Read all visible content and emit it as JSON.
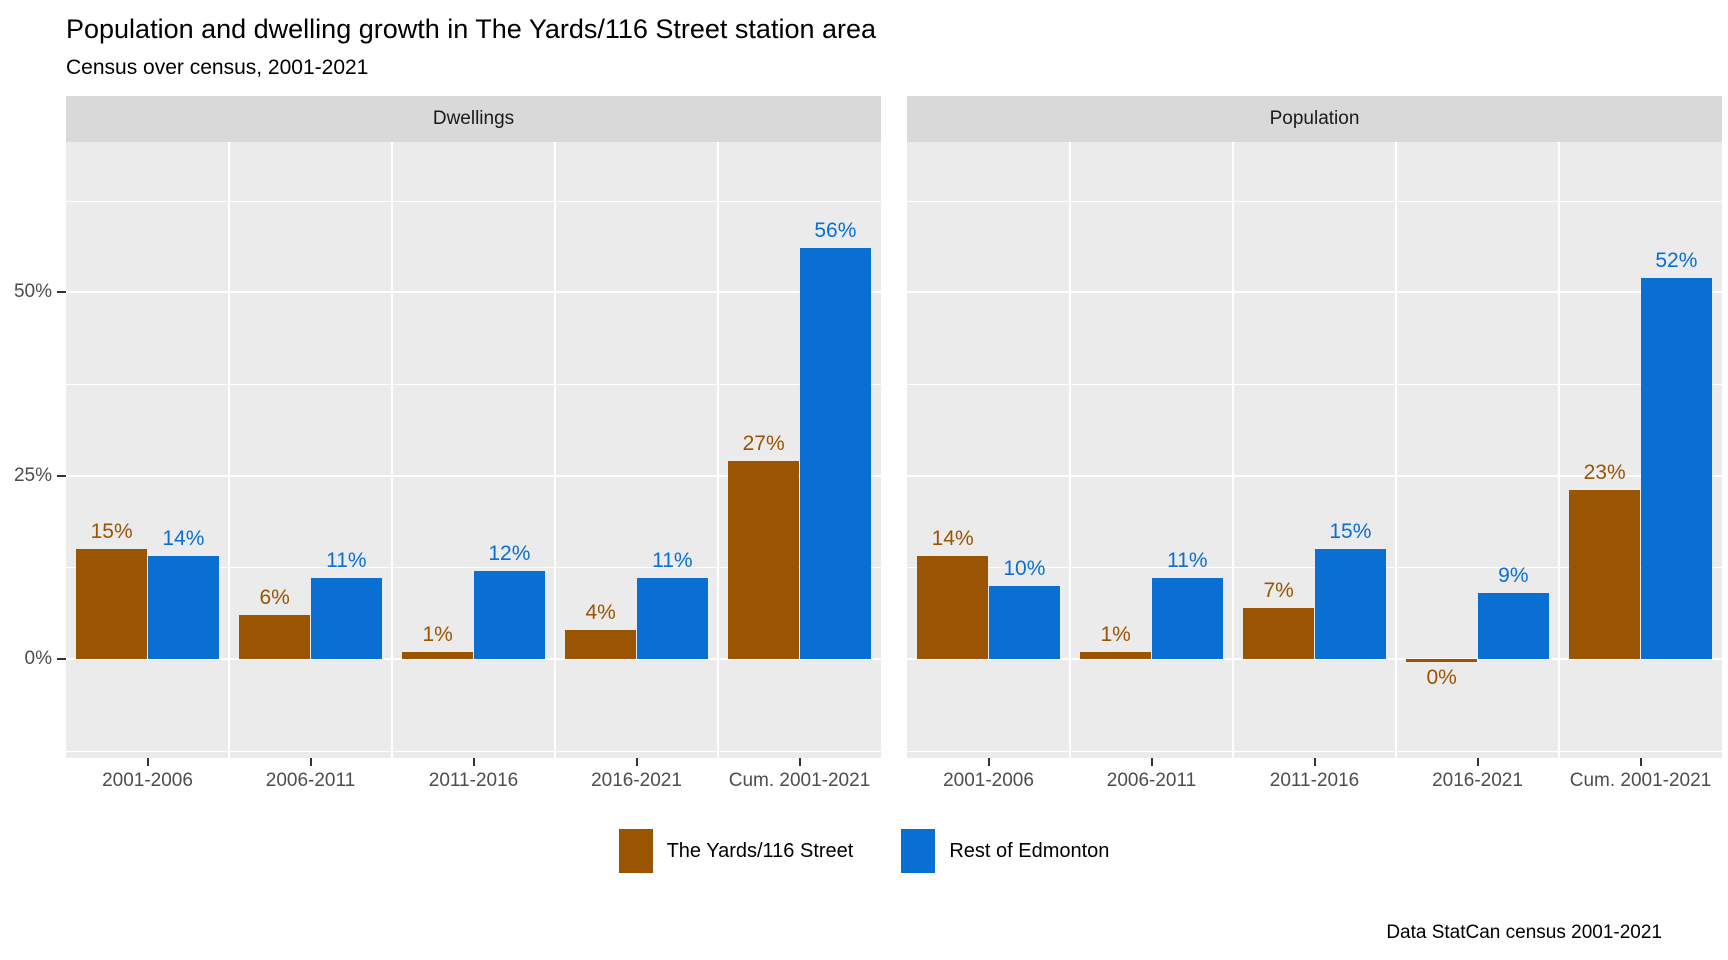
{
  "title": "Population and dwelling growth in The Yards/116 Street station area",
  "subtitle": "Census over census, 2001-2021",
  "caption": "Data StatCan census 2001-2021",
  "colors": {
    "series_yards": "#9a5402",
    "series_rest": "#0a6fd2",
    "panel_background": "#ebebeb",
    "strip_background": "#d9d9d9",
    "gridline": "#ffffff",
    "axis_text": "#4d4d4d",
    "tick_mark": "#333333"
  },
  "y_axis": {
    "ticks": [
      {
        "label": "50%",
        "value": 50
      },
      {
        "label": "25%",
        "value": 25
      },
      {
        "label": "0%",
        "value": 0
      }
    ]
  },
  "legend": [
    {
      "label": "The Yards/116 Street",
      "color": "#9a5402"
    },
    {
      "label": "Rest of Edmonton",
      "color": "#0a6fd2"
    }
  ],
  "chart_data": {
    "type": "bar",
    "layout": "grouped-bar, two facets side by side, shared y axis on left",
    "categories": [
      "2001-2006",
      "2006-2011",
      "2011-2016",
      "2016-2021",
      "Cum. 2001-2021"
    ],
    "ylim": [
      -13.5,
      70.5
    ],
    "y_major_gridlines": [
      0,
      25,
      50
    ],
    "y_minor_gridlines": [
      -12.5,
      12.5,
      37.5,
      62.5
    ],
    "grid": "white on light gray panel",
    "legend_position": "bottom",
    "facets": [
      {
        "title": "Dwellings",
        "series": [
          {
            "name": "The Yards/116 Street",
            "color": "#9a5402",
            "values": [
              15,
              6,
              1,
              4,
              27
            ],
            "labels": [
              "15%",
              "6%",
              "1%",
              "4%",
              "27%"
            ]
          },
          {
            "name": "Rest of Edmonton",
            "color": "#0a6fd2",
            "values": [
              14,
              11,
              12,
              11,
              56
            ],
            "labels": [
              "14%",
              "11%",
              "12%",
              "11%",
              "56%"
            ]
          }
        ]
      },
      {
        "title": "Population",
        "series": [
          {
            "name": "The Yards/116 Street",
            "color": "#9a5402",
            "values": [
              14,
              1,
              7,
              -0.4,
              23
            ],
            "labels": [
              "14%",
              "1%",
              "7%",
              "0%",
              "23%"
            ]
          },
          {
            "name": "Rest of Edmonton",
            "color": "#0a6fd2",
            "values": [
              10,
              11,
              15,
              9,
              52
            ],
            "labels": [
              "10%",
              "11%",
              "15%",
              "9%",
              "52%"
            ]
          }
        ]
      }
    ]
  }
}
